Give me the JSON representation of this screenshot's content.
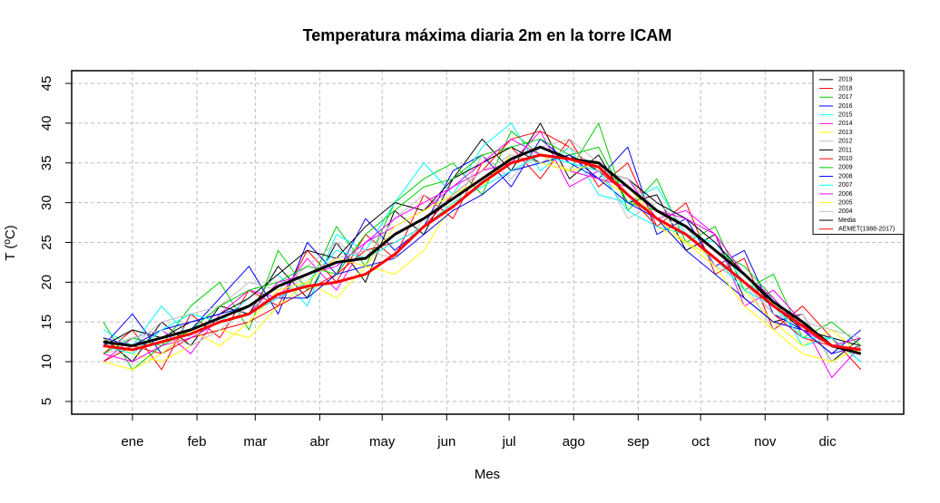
{
  "chart_data": {
    "type": "line",
    "title": "Temperatura máxima diaria 2m en la torre ICAM",
    "x_label": "Mes",
    "y_label": "T (ºC)",
    "x": [
      1,
      15,
      29,
      43,
      57,
      71,
      85,
      99,
      113,
      127,
      141,
      155,
      169,
      183,
      197,
      211,
      225,
      239,
      253,
      267,
      281,
      295,
      309,
      323,
      337,
      351,
      365
    ],
    "xlim": [
      -14.2,
      385.6
    ],
    "xticks": [
      {
        "value": 15,
        "label": "ene"
      },
      {
        "value": 46,
        "label": "feb"
      },
      {
        "value": 74,
        "label": "mar"
      },
      {
        "value": 105,
        "label": "abr"
      },
      {
        "value": 135,
        "label": "may"
      },
      {
        "value": 166,
        "label": "jun"
      },
      {
        "value": 196,
        "label": "jul"
      },
      {
        "value": 227,
        "label": "ago"
      },
      {
        "value": 258,
        "label": "sep"
      },
      {
        "value": 288,
        "label": "oct"
      },
      {
        "value": 319,
        "label": "nov"
      },
      {
        "value": 349,
        "label": "dic"
      }
    ],
    "ylim": [
      3.4,
      46.6
    ],
    "yticks": [
      5,
      10,
      15,
      20,
      25,
      30,
      35,
      40,
      45
    ],
    "grid": true,
    "legend": "top-right",
    "series": [
      {
        "name": "2019",
        "color": "#000000",
        "linewidth": 1,
        "values": [
          13,
          10,
          15,
          12,
          17,
          16,
          22,
          18,
          25,
          20,
          29,
          26,
          33,
          38,
          34,
          40,
          33,
          36,
          30,
          31,
          24,
          26,
          18,
          15,
          16,
          10,
          13
        ]
      },
      {
        "name": "2018",
        "color": "#ff0000",
        "linewidth": 1,
        "values": [
          11,
          14,
          9,
          16,
          13,
          19,
          17,
          24,
          20,
          26,
          23,
          31,
          28,
          35,
          37,
          33,
          38,
          32,
          35,
          27,
          30,
          21,
          23,
          14,
          17,
          13,
          9
        ]
      },
      {
        "name": "2017",
        "color": "#00cd00",
        "linewidth": 1,
        "values": [
          15,
          9,
          12,
          17,
          20,
          14,
          24,
          19,
          27,
          22,
          30,
          33,
          35,
          31,
          39,
          36,
          34,
          40,
          29,
          33,
          25,
          27,
          19,
          21,
          13,
          15,
          12
        ]
      },
      {
        "name": "2016",
        "color": "#0000ff",
        "linewidth": 1,
        "values": [
          12,
          16,
          11,
          14,
          18,
          22,
          16,
          25,
          21,
          28,
          24,
          27,
          34,
          36,
          32,
          38,
          35,
          33,
          37,
          26,
          28,
          22,
          24,
          16,
          14,
          11,
          14
        ]
      },
      {
        "name": "2015",
        "color": "#00ffff",
        "linewidth": 1,
        "values": [
          14,
          12,
          17,
          13,
          15,
          18,
          21,
          17,
          26,
          24,
          30,
          35,
          31,
          37,
          40,
          34,
          37,
          31,
          30,
          32,
          26,
          25,
          20,
          18,
          12,
          13,
          10
        ]
      },
      {
        "name": "2014",
        "color": "#ff00ff",
        "linewidth": 1,
        "values": [
          10,
          13,
          14,
          11,
          16,
          19,
          18,
          23,
          19,
          25,
          27,
          29,
          32,
          34,
          35,
          39,
          32,
          34,
          33,
          28,
          29,
          26,
          17,
          19,
          15,
          8,
          12
        ]
      },
      {
        "name": "2013",
        "color": "#ffff00",
        "linewidth": 1,
        "values": [
          13,
          11,
          10,
          12,
          14,
          13,
          17,
          20,
          18,
          22,
          21,
          24,
          30,
          32,
          36,
          35,
          34,
          33,
          31,
          27,
          25,
          23,
          19,
          15,
          12,
          14,
          11
        ]
      },
      {
        "name": "2012",
        "color": "#bebebe",
        "linewidth": 1,
        "values": [
          11,
          12,
          15,
          16,
          17,
          20,
          19,
          22,
          25,
          23,
          28,
          31,
          29,
          36,
          33,
          37,
          38,
          35,
          28,
          30,
          27,
          22,
          20,
          14,
          16,
          10,
          12
        ]
      },
      {
        "name": "2011",
        "color": "#000000",
        "linewidth": 1,
        "values": [
          12,
          14,
          13,
          15,
          16,
          18,
          21,
          24,
          23,
          27,
          30,
          29,
          33,
          35,
          37,
          35,
          36,
          34,
          33,
          30,
          28,
          25,
          21,
          17,
          14,
          13,
          12
        ]
      },
      {
        "name": "2010",
        "color": "#ff0000",
        "linewidth": 1,
        "values": [
          10,
          12,
          11,
          13,
          14,
          15,
          17,
          19,
          21,
          24,
          25,
          27,
          31,
          34,
          38,
          39,
          37,
          34,
          31,
          27,
          26,
          23,
          20,
          16,
          13,
          12,
          11
        ]
      },
      {
        "name": "2009",
        "color": "#00cd00",
        "linewidth": 1,
        "values": [
          11,
          13,
          12,
          14,
          17,
          19,
          20,
          22,
          21,
          26,
          29,
          32,
          33,
          36,
          37,
          38,
          36,
          37,
          30,
          29,
          27,
          24,
          22,
          18,
          14,
          12,
          13
        ]
      },
      {
        "name": "2008",
        "color": "#0000ff",
        "linewidth": 1,
        "values": [
          13,
          12,
          14,
          15,
          16,
          17,
          18,
          18,
          21,
          22,
          23,
          26,
          29,
          31,
          34,
          35,
          36,
          33,
          30,
          28,
          24,
          21,
          18,
          15,
          14,
          11,
          12
        ]
      },
      {
        "name": "2007",
        "color": "#00ffff",
        "linewidth": 1,
        "values": [
          12,
          11,
          14,
          16,
          15,
          16,
          18,
          20,
          24,
          23,
          25,
          27,
          30,
          32,
          34,
          36,
          35,
          34,
          29,
          27,
          26,
          23,
          19,
          17,
          13,
          13,
          10
        ]
      },
      {
        "name": "2006",
        "color": "#ff00ff",
        "linewidth": 1,
        "values": [
          11,
          10,
          12,
          13,
          15,
          16,
          20,
          21,
          22,
          25,
          28,
          30,
          32,
          35,
          38,
          36,
          34,
          33,
          32,
          29,
          28,
          26,
          21,
          18,
          14,
          12,
          13
        ]
      },
      {
        "name": "2005",
        "color": "#ffff00",
        "linewidth": 1,
        "values": [
          10,
          9,
          11,
          14,
          12,
          15,
          19,
          20,
          23,
          22,
          27,
          29,
          31,
          33,
          35,
          36,
          34,
          35,
          32,
          28,
          25,
          22,
          17,
          14,
          11,
          10,
          12
        ]
      },
      {
        "name": "2004",
        "color": "#bebebe",
        "linewidth": 1,
        "values": [
          12,
          13,
          14,
          12,
          14,
          17,
          18,
          21,
          23,
          24,
          23,
          28,
          31,
          34,
          36,
          35,
          37,
          34,
          33,
          29,
          26,
          23,
          20,
          16,
          15,
          14,
          13
        ]
      },
      {
        "name": "Media",
        "color": "#000000",
        "linewidth": 3,
        "values": [
          12.5,
          12,
          13,
          14,
          15.5,
          17,
          19.5,
          21,
          22.5,
          23,
          26,
          28,
          30.5,
          33,
          35.5,
          37,
          35.5,
          35,
          32,
          29,
          27,
          24,
          21,
          17.5,
          15,
          12,
          11
        ]
      },
      {
        "name": "AEMET(1988-2017)",
        "color": "#ff0000",
        "linewidth": 3,
        "values": [
          12,
          11.5,
          12.5,
          13.5,
          15,
          16,
          18.5,
          19.5,
          20,
          21,
          23.5,
          27,
          29.5,
          32.5,
          35,
          36,
          35.5,
          34.5,
          31,
          28,
          26,
          23,
          20,
          17,
          14.5,
          12,
          11.5
        ]
      }
    ]
  }
}
